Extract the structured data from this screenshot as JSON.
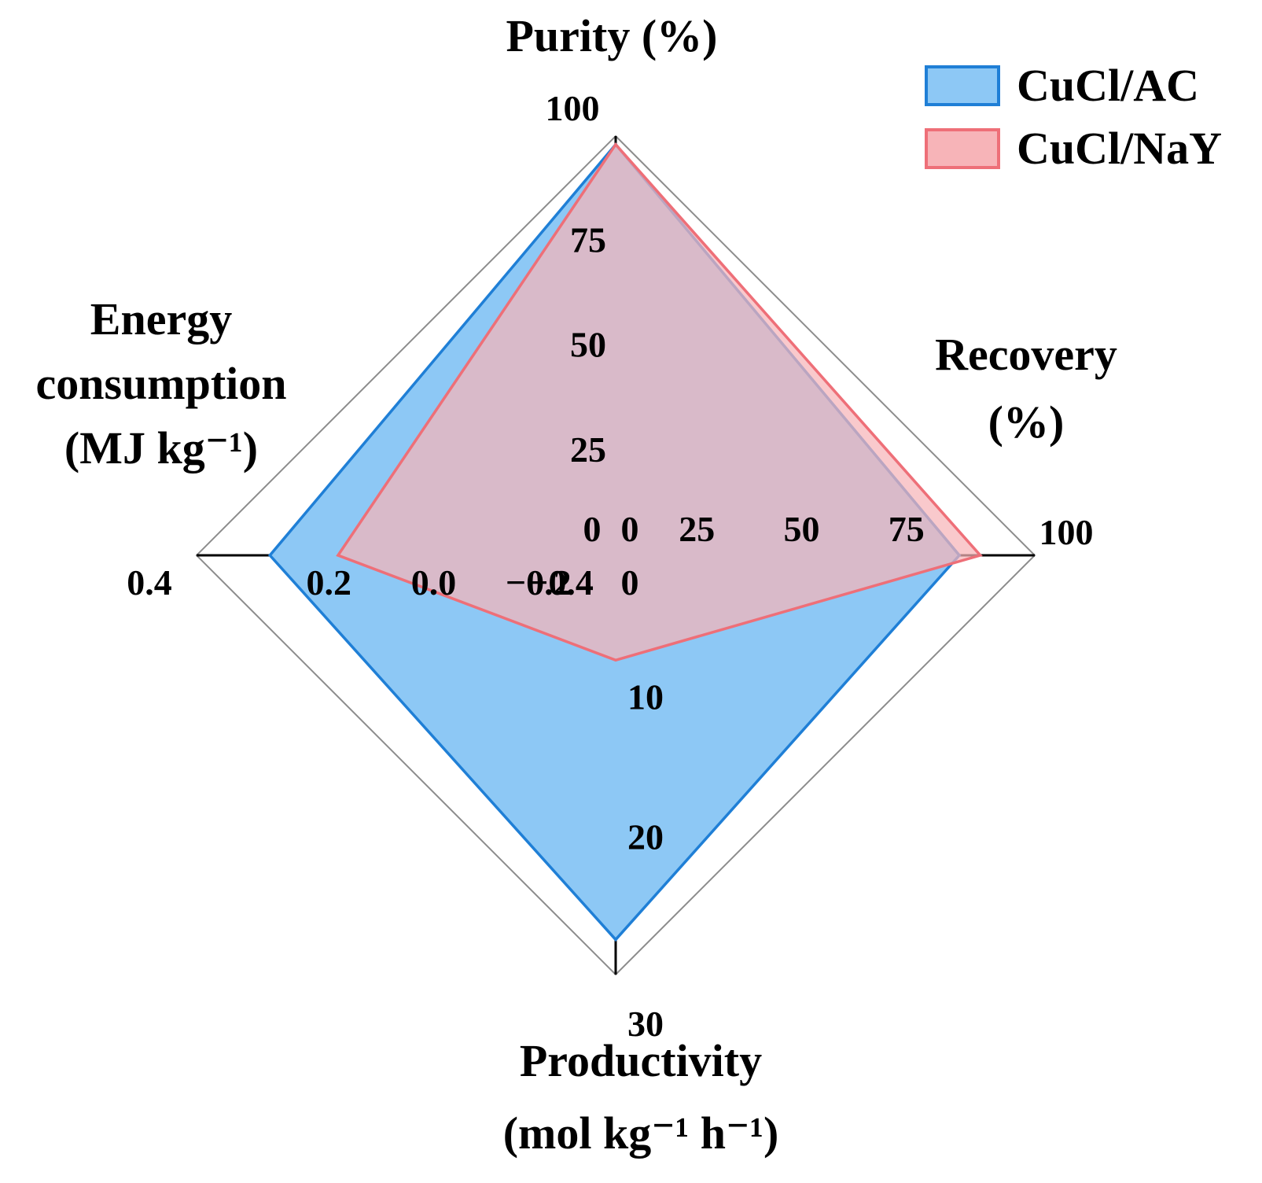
{
  "chart_data": {
    "type": "radar",
    "axes": [
      {
        "key": "purity",
        "direction": "up",
        "title_lines": [
          "Purity (%)"
        ],
        "min": 0,
        "max": 100,
        "ticks": [
          "25",
          "50",
          "75"
        ],
        "end_label": "100",
        "zero_label": "0"
      },
      {
        "key": "recovery",
        "direction": "right",
        "title_lines": [
          "Recovery",
          "(%)"
        ],
        "min": 0,
        "max": 100,
        "ticks": [
          "25",
          "50",
          "75"
        ],
        "end_label": "100",
        "zero_label": "0"
      },
      {
        "key": "productivity",
        "direction": "down",
        "title_lines": [
          "Productivity",
          "(mol kg⁻¹ h⁻¹)"
        ],
        "min": 0,
        "max": 30,
        "ticks": [
          "10",
          "20"
        ],
        "end_label": "30",
        "zero_label": "0"
      },
      {
        "key": "energy",
        "direction": "left",
        "title_lines": [
          "Energy",
          "consumption",
          "(MJ kg⁻¹)"
        ],
        "min": -0.4,
        "max": 0.4,
        "ticks": [
          "−0.2",
          "0.0",
          "0.2"
        ],
        "end_label": "0.4",
        "zero_label": "−0.4"
      }
    ],
    "grid_levels": 4,
    "series": [
      {
        "name": "CuCl/AC",
        "fill": "#8dc8f5",
        "stroke": "#1f7fd6",
        "values": {
          "purity": 98,
          "recovery": 82,
          "productivity": 27.5,
          "energy": 0.26
        }
      },
      {
        "name": "CuCl/NaY",
        "fill": "#f7b4b8",
        "stroke": "#ee6f78",
        "values": {
          "purity": 98,
          "recovery": 87,
          "productivity": 7.5,
          "energy": 0.13
        }
      }
    ],
    "legend": {
      "position": "top-right"
    }
  }
}
